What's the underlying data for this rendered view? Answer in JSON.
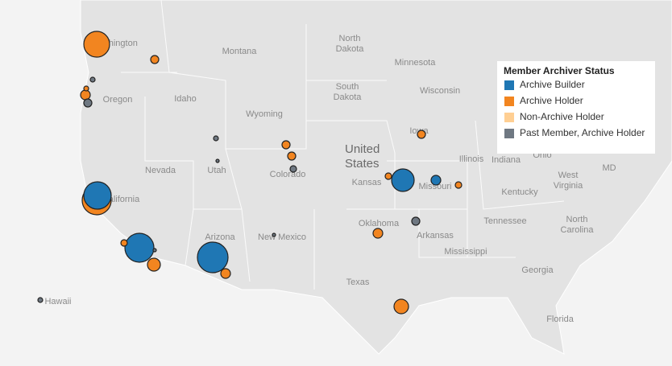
{
  "legend": {
    "title": "Member Archiver Status",
    "entries": [
      {
        "label": "Archive Builder",
        "color": "#1f77b4"
      },
      {
        "label": "Archive Holder",
        "color": "#f28520"
      },
      {
        "label": "Non-Archive Holder",
        "color": "#ffcf93"
      },
      {
        "label": "Past Member, Archive Holder",
        "color": "#6f7882"
      }
    ]
  },
  "map_labels": [
    [
      "Washington"
    ],
    [
      "Montana"
    ],
    [
      "North",
      "Dakota"
    ],
    [
      "Minnesota"
    ],
    [
      "South",
      "Dakota"
    ],
    [
      "Wisconsin"
    ],
    [
      "Oregon"
    ],
    [
      "Idaho"
    ],
    [
      "Wyoming"
    ],
    [
      "Iowa"
    ],
    [
      "United",
      "States"
    ],
    [
      "Nevada"
    ],
    [
      "Utah"
    ],
    [
      "Colorado"
    ],
    [
      "Kansas"
    ],
    [
      "Illinois"
    ],
    [
      "Indiana"
    ],
    [
      "Ohio"
    ],
    [
      "West"
    ],
    [
      "Virginia"
    ],
    [
      "MD"
    ],
    [
      "Missouri"
    ],
    [
      "Kentucky"
    ],
    [
      "California"
    ],
    [
      "Arizona"
    ],
    [
      "New Mexico"
    ],
    [
      "Oklahoma"
    ],
    [
      "Tennessee"
    ],
    [
      "North",
      "Carolina"
    ],
    [
      "Arkansas"
    ],
    [
      "Mississippi"
    ],
    [
      "Georgia"
    ],
    [
      "Texas"
    ],
    [
      "Florida"
    ],
    [
      "Hawaii"
    ]
  ],
  "markers": [
    {
      "status": 1,
      "size": 16
    },
    {
      "status": 1,
      "size": 5
    },
    {
      "status": 3,
      "size": 3
    },
    {
      "status": 1,
      "size": 6
    },
    {
      "status": 3,
      "size": 5
    },
    {
      "status": 1,
      "size": 3
    },
    {
      "status": 3,
      "size": 3
    },
    {
      "status": 3,
      "size": 2
    },
    {
      "status": 1,
      "size": 5
    },
    {
      "status": 1,
      "size": 5
    },
    {
      "status": 3,
      "size": 4
    },
    {
      "status": 1,
      "size": 18
    },
    {
      "status": 0,
      "size": 17
    },
    {
      "status": 0,
      "size": 18
    },
    {
      "status": 1,
      "size": 4
    },
    {
      "status": 1,
      "size": 8
    },
    {
      "status": 3,
      "size": 2
    },
    {
      "status": 0,
      "size": 19
    },
    {
      "status": 1,
      "size": 6
    },
    {
      "status": 3,
      "size": 2
    },
    {
      "status": 1,
      "size": 5
    },
    {
      "status": 1,
      "size": 4
    },
    {
      "status": 0,
      "size": 14
    },
    {
      "status": 0,
      "size": 6
    },
    {
      "status": 1,
      "size": 4
    },
    {
      "status": 3,
      "size": 5
    },
    {
      "status": 1,
      "size": 6
    },
    {
      "status": 1,
      "size": 9
    },
    {
      "status": 3,
      "size": 3
    }
  ]
}
